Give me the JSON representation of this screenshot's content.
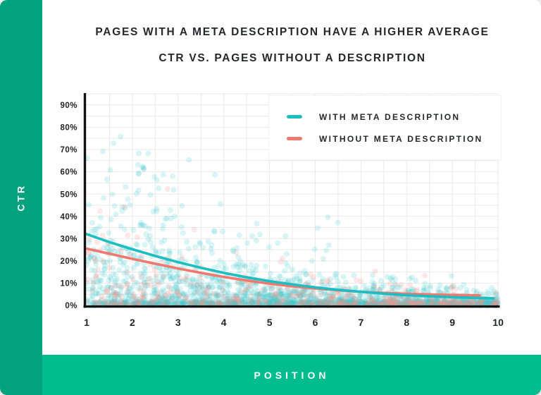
{
  "title": {
    "line1": "PAGES WITH A META DESCRIPTION HAVE A HIGHER AVERAGE",
    "line2": "CTR VS. PAGES WITHOUT A DESCRIPTION"
  },
  "axes": {
    "y_label": "CTR",
    "x_label": "POSITION"
  },
  "legend": {
    "items": [
      {
        "label": "WITH META DESCRIPTION",
        "color_key": "with_line"
      },
      {
        "label": "WITHOUT META DESCRIPTION",
        "color_key": "without_line"
      }
    ]
  },
  "colors": {
    "left_bar": "#01a27d",
    "bottom_bar": "#00bd8f",
    "with_line": "#1dbec1",
    "without_line": "#f0796f",
    "with_dot": "#3fc9cf",
    "without_dot": "#f2948c",
    "grid": "#e9e9e9",
    "axis": "#111111",
    "tick_text": "#212427"
  },
  "chart_data": {
    "type": "scatter",
    "title": "Pages with a meta description have a higher average CTR vs. pages without a description",
    "xlabel": "POSITION",
    "ylabel": "CTR",
    "xlim": [
      1,
      10
    ],
    "ylim": [
      0,
      95
    ],
    "x_ticks": [
      1,
      2,
      3,
      4,
      5,
      6,
      7,
      8,
      9,
      10
    ],
    "y_ticks_percent": [
      0,
      10,
      20,
      30,
      40,
      50,
      60,
      70,
      80,
      90
    ],
    "grid": {
      "on": true,
      "x_step": 0.5,
      "y_step_percent": 5
    },
    "legend_position": "top-right",
    "series": [
      {
        "name": "WITH META DESCRIPTION",
        "color_key": "with_line",
        "x": [
          1,
          1.5,
          2,
          2.5,
          3,
          3.5,
          4,
          4.5,
          5,
          5.5,
          6,
          6.5,
          7,
          7.5,
          8,
          8.5,
          9,
          9.5,
          9.9
        ],
        "y": [
          32,
          28.4,
          25.2,
          22.2,
          19.4,
          16.9,
          14.6,
          12.6,
          10.9,
          9.4,
          8.1,
          7.0,
          6.1,
          5.3,
          4.6,
          4.1,
          3.7,
          3.4,
          3.2
        ]
      },
      {
        "name": "WITHOUT META DESCRIPTION",
        "color_key": "without_line",
        "x": [
          1,
          1.5,
          2,
          2.5,
          3,
          3.5,
          4,
          4.5,
          5,
          5.5,
          6,
          6.5,
          7,
          7.5,
          8,
          8.5,
          9,
          9.6
        ],
        "y": [
          25.5,
          23.2,
          20.9,
          18.7,
          16.6,
          14.6,
          12.8,
          11.2,
          9.8,
          8.6,
          7.6,
          6.8,
          6.1,
          5.6,
          5.2,
          4.9,
          4.7,
          4.5
        ]
      }
    ],
    "scatter_gen": {
      "note": "semi-transparent point cloud, exponential CTR falloff by position",
      "seed": 1337,
      "dot_radius": 4,
      "teal": {
        "count": 1500,
        "band_count": 550,
        "amp": 26,
        "decay": 0.38,
        "base": 1.5,
        "opacity": 0.2
      },
      "salmon": {
        "count": 420,
        "band_count": 80,
        "amp": 18,
        "decay": 0.38,
        "base": 1.5,
        "opacity": 0.22
      },
      "band_max_percent": 1.8
    }
  }
}
